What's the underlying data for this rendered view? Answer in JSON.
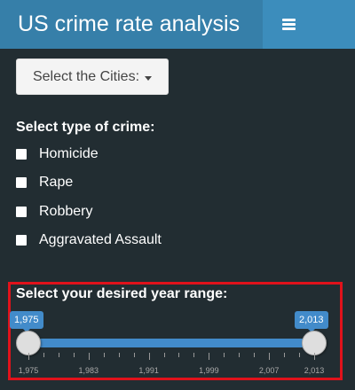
{
  "header": {
    "title": "US crime rate analysis",
    "toggle_icon": "hamburger-menu-icon",
    "colors": {
      "header_bg": "#3c8dbc",
      "logo_bg": "#367fa9",
      "sidebar_bg": "#222d32"
    }
  },
  "cities_dropdown": {
    "label": "Select the Cities:"
  },
  "crime_types": {
    "label": "Select type of crime:",
    "options": [
      {
        "label": "Homicide",
        "checked": false
      },
      {
        "label": "Rape",
        "checked": false
      },
      {
        "label": "Robbery",
        "checked": false
      },
      {
        "label": "Aggravated Assault",
        "checked": false
      }
    ]
  },
  "year_range": {
    "label": "Select your desired year range:",
    "min": 1975,
    "max": 2013,
    "from": 1975,
    "to": 2013,
    "from_label": "1,975",
    "to_label": "2,013",
    "major_ticks": [
      "1,975",
      "1,983",
      "1,991",
      "1,999",
      "2,007",
      "2,013"
    ],
    "highlight_color": "#e0121b",
    "accent_color": "#428bca"
  }
}
